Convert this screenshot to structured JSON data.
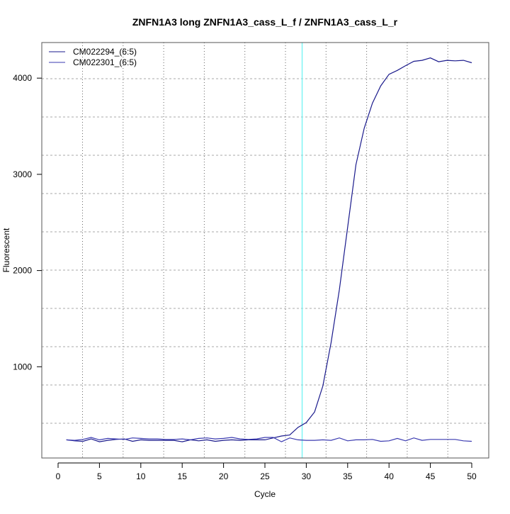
{
  "chart_data": {
    "type": "line",
    "title": "ZNFN1A3 long ZNFN1A3_cass_L_f / ZNFN1A3_cass_L_r",
    "xlabel": "Cycle",
    "ylabel": "Fluorescent",
    "xlim": [
      -2,
      52
    ],
    "ylim": [
      50,
      4370
    ],
    "x_ticks": [
      0,
      5,
      10,
      15,
      20,
      25,
      30,
      35,
      40,
      45,
      50
    ],
    "y_ticks": [
      1000,
      2000,
      3000,
      4000
    ],
    "grid": true,
    "legend_position": "top-left",
    "threshold_cycle": 29.5,
    "threshold_color": "#7ff5f5",
    "x": [
      1,
      2,
      3,
      4,
      5,
      6,
      7,
      8,
      9,
      10,
      11,
      12,
      13,
      14,
      15,
      16,
      17,
      18,
      19,
      20,
      21,
      22,
      23,
      24,
      25,
      26,
      27,
      28,
      29,
      30,
      31,
      32,
      33,
      34,
      35,
      36,
      37,
      38,
      39,
      40,
      41,
      42,
      43,
      44,
      45,
      46,
      47,
      48,
      49,
      50
    ],
    "series": [
      {
        "name": "CM022294_(6:5)",
        "color": "#1a1a8c",
        "values": [
          240,
          230,
          225,
          250,
          220,
          235,
          245,
          250,
          225,
          240,
          235,
          235,
          235,
          235,
          220,
          240,
          230,
          240,
          225,
          235,
          240,
          235,
          240,
          240,
          240,
          260,
          280,
          290,
          370,
          420,
          530,
          800,
          1250,
          1800,
          2450,
          3100,
          3480,
          3740,
          3920,
          4040,
          4080,
          4130,
          4175,
          4185,
          4210,
          4170,
          4185,
          4180,
          4185,
          4160
        ]
      },
      {
        "name": "CM022301_(6:5)",
        "color": "#3a3ab0",
        "values": [
          240,
          235,
          245,
          265,
          240,
          255,
          250,
          245,
          260,
          255,
          250,
          250,
          245,
          245,
          250,
          240,
          255,
          260,
          250,
          255,
          265,
          250,
          245,
          250,
          265,
          265,
          220,
          260,
          240,
          235,
          235,
          240,
          235,
          260,
          230,
          240,
          240,
          245,
          225,
          230,
          255,
          230,
          260,
          235,
          245,
          245,
          245,
          245,
          230,
          225
        ]
      }
    ]
  }
}
